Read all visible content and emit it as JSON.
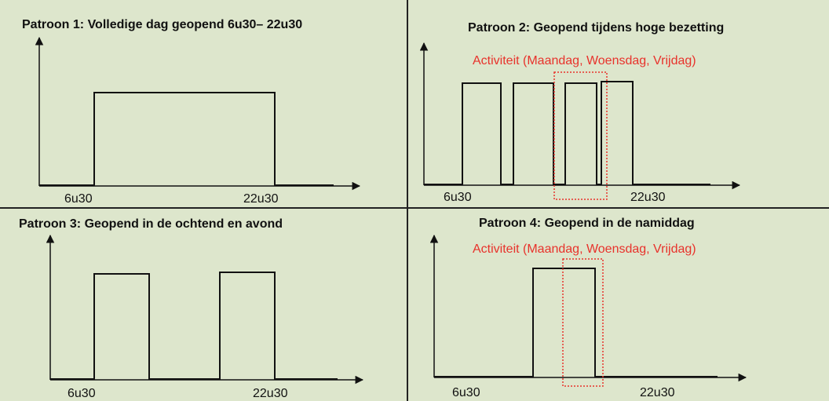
{
  "colors": {
    "background": "#dde6cc",
    "line": "#111111",
    "divider": "#222222",
    "highlight": "#e8322b"
  },
  "panels": [
    {
      "id": "p1",
      "title": "Patroon 1: Volledige dag geopend 6u30– 22u30",
      "note": "",
      "x_labels": [
        "6u30",
        "22u30"
      ],
      "open_blocks": 1
    },
    {
      "id": "p2",
      "title": "Patroon 2: Geopend tijdens hoge bezetting",
      "note": "Activiteit (Maandag, Woensdag, Vrijdag)",
      "x_labels": [
        "6u30",
        "22u30"
      ],
      "open_blocks": 4
    },
    {
      "id": "p3",
      "title": "Patroon 3: Geopend in de ochtend en avond",
      "note": "",
      "x_labels": [
        "6u30",
        "22u30"
      ],
      "open_blocks": 2
    },
    {
      "id": "p4",
      "title": "Patroon 4: Geopend in de namiddag",
      "note": "Activiteit (Maandag, Woensdag, Vrijdag)",
      "x_labels": [
        "6u30",
        "22u30"
      ],
      "open_blocks": 1
    }
  ]
}
